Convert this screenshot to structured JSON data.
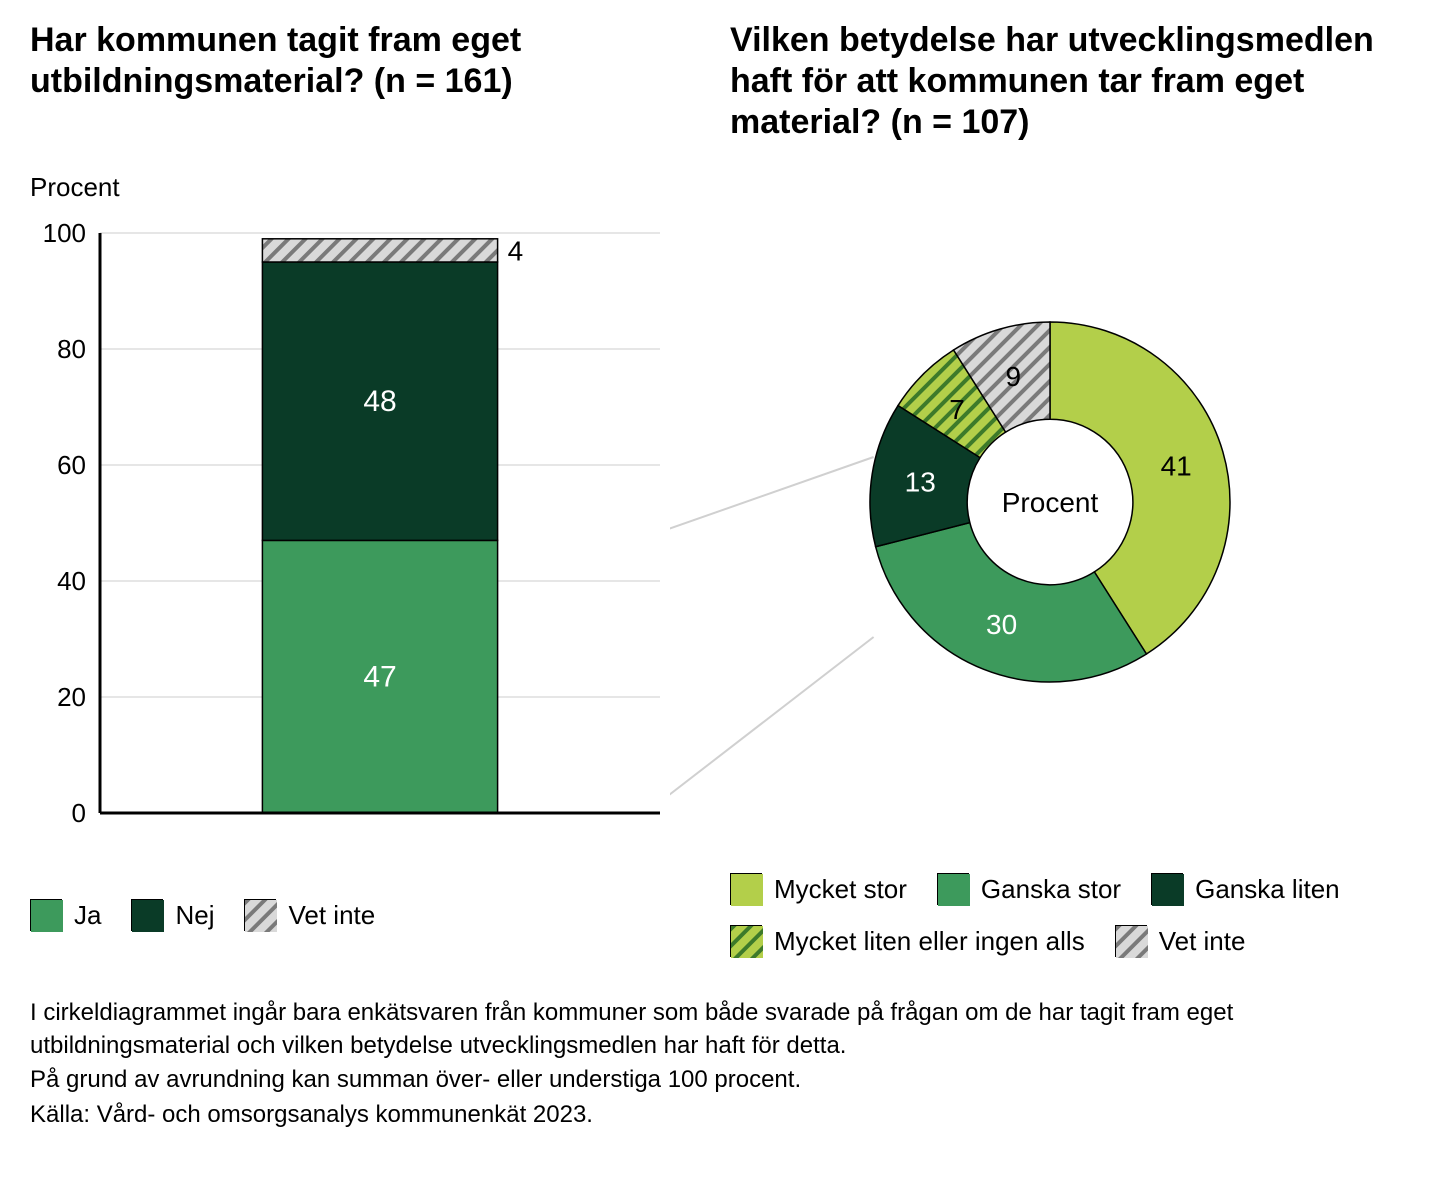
{
  "colors": {
    "ja": "#3d9a5c",
    "nej": "#0a3b27",
    "vet_inte_fill": "#d9d9d9",
    "vet_inte_stripe": "#7a7a7a",
    "mycket_stor": "#b3cf4a",
    "ganska_stor": "#3d9a5c",
    "ganska_liten": "#0a3b27",
    "mycket_liten_fill": "#b3cf4a",
    "mycket_liten_stripe": "#3d7a2a",
    "axis": "#000000",
    "grid": "#cccccc",
    "connector": "#d0d0d0",
    "white": "#ffffff",
    "text": "#000000"
  },
  "left_chart": {
    "title": "Har kommunen tagit fram eget utbildningsmaterial? (n = 161)",
    "y_axis_title": "Procent",
    "ylim": [
      0,
      100
    ],
    "ytick_step": 20,
    "yticks": [
      "0",
      "20",
      "40",
      "60",
      "80",
      "100"
    ],
    "segments": [
      {
        "key": "ja",
        "label": "Ja",
        "value": 47,
        "value_label": "47",
        "label_color": "#ffffff"
      },
      {
        "key": "nej",
        "label": "Nej",
        "value": 48,
        "value_label": "48",
        "label_color": "#ffffff"
      },
      {
        "key": "vet_inte",
        "label": "Vet inte",
        "value": 4,
        "value_label": "4",
        "label_color": "#000000",
        "label_outside": true
      }
    ],
    "bar_width_ratio": 0.42,
    "legend": [
      {
        "key": "ja",
        "label": "Ja"
      },
      {
        "key": "nej",
        "label": "Nej"
      },
      {
        "key": "vet_inte",
        "label": "Vet inte"
      }
    ]
  },
  "right_chart": {
    "title": "Vilken betydelse har utvecklings­medlen haft för att kommunen tar fram eget material? (n = 107)",
    "center_label": "Procent",
    "inner_radius_ratio": 0.46,
    "start_angle_deg": -90,
    "slices": [
      {
        "key": "mycket_stor",
        "label": "Mycket stor",
        "value": 41,
        "value_label": "41",
        "label_color": "#000000"
      },
      {
        "key": "ganska_stor",
        "label": "Ganska stor",
        "value": 30,
        "value_label": "30",
        "label_color": "#ffffff"
      },
      {
        "key": "ganska_liten",
        "label": "Ganska liten",
        "value": 13,
        "value_label": "13",
        "label_color": "#ffffff"
      },
      {
        "key": "mycket_liten",
        "label": "Mycket liten eller ingen alls",
        "value": 7,
        "value_label": "7",
        "label_color": "#000000"
      },
      {
        "key": "vet_inte",
        "label": "Vet inte",
        "value": 9,
        "value_label": "9",
        "label_color": "#000000"
      }
    ],
    "legend": [
      {
        "key": "mycket_stor",
        "label": "Mycket stor"
      },
      {
        "key": "ganska_stor",
        "label": "Ganska stor"
      },
      {
        "key": "ganska_liten",
        "label": "Ganska liten"
      },
      {
        "key": "mycket_liten",
        "label": "Mycket liten eller ingen alls"
      },
      {
        "key": "vet_inte",
        "label": "Vet inte"
      }
    ]
  },
  "footnotes": [
    "I cirkeldiagrammet ingår bara enkätsvaren från kommuner som både svarade på frågan om de har tagit fram eget utbildningsmaterial och vilken betydelse utvecklingsmedlen har haft för detta.",
    "På grund av avrundning kan summan över- eller understiga 100 procent.",
    "Källa: Vård- och omsorgsanalys kommunenkät 2023."
  ],
  "typography": {
    "title_fontsize_pt": 26,
    "axis_label_fontsize_pt": 20,
    "tick_fontsize_pt": 20,
    "data_label_fontsize_pt": 22,
    "legend_fontsize_pt": 20,
    "footnote_fontsize_pt": 18
  }
}
